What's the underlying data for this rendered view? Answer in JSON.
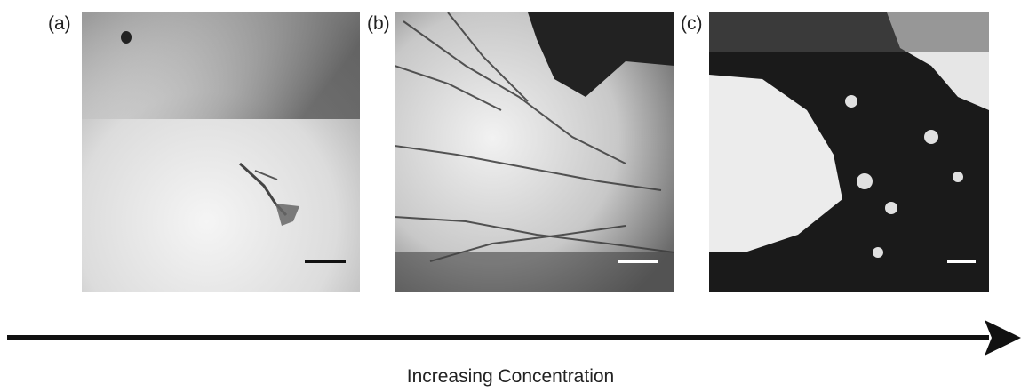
{
  "panels": [
    {
      "label": "(a)",
      "scale_bar_color": "#111111"
    },
    {
      "label": "(b)",
      "scale_bar_color": "#ffffff"
    },
    {
      "label": "(c)",
      "scale_bar_color": "#ffffff"
    }
  ],
  "caption": "Increasing Concentration",
  "colors": {
    "arrow": "#111111",
    "text": "#222222"
  }
}
